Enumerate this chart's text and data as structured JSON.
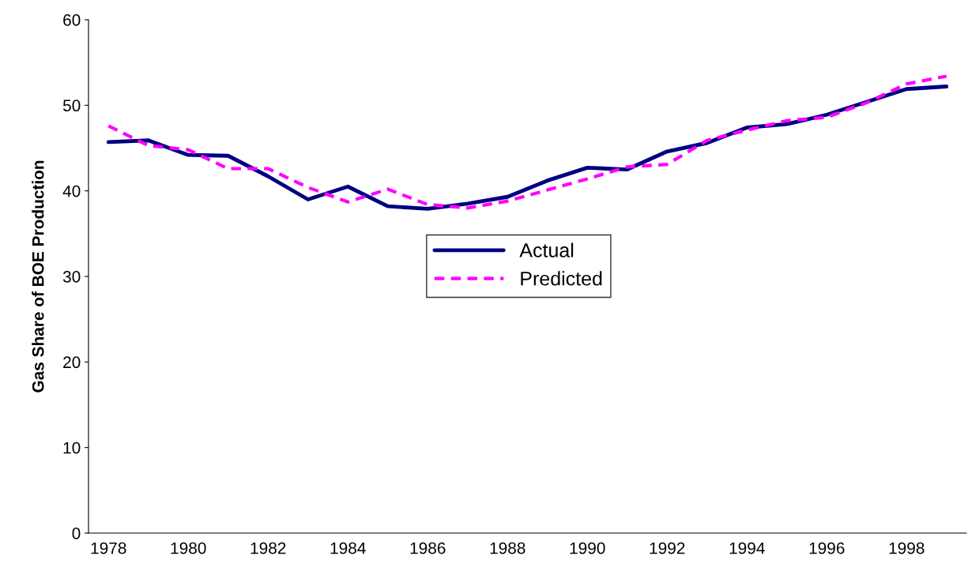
{
  "chart_data": {
    "type": "line",
    "ylabel": "Gas Share of BOE Production",
    "categories": [
      "1978",
      null,
      "1980",
      null,
      "1982",
      null,
      "1984",
      null,
      "1986",
      null,
      "1988",
      null,
      "1990",
      null,
      "1992",
      null,
      "1994",
      null,
      "1996",
      null,
      "1998",
      null
    ],
    "series": [
      {
        "name": "Actual",
        "color": "#000080",
        "line_style": "solid",
        "values": [
          45.7,
          45.9,
          44.2,
          44.1,
          41.7,
          39.0,
          40.5,
          38.2,
          37.9,
          38.5,
          39.3,
          41.2,
          42.7,
          42.5,
          44.6,
          45.6,
          47.4,
          47.8,
          48.9,
          50.4,
          51.9,
          52.2
        ]
      },
      {
        "name": "Predicted",
        "color": "#ff00ff",
        "line_style": "dashed",
        "values": [
          47.6,
          45.3,
          44.8,
          42.6,
          42.6,
          40.4,
          38.7,
          40.2,
          38.4,
          38.0,
          38.8,
          40.1,
          41.4,
          42.8,
          43.1,
          45.9,
          47.1,
          48.2,
          48.6,
          50.3,
          52.5,
          53.4
        ]
      }
    ],
    "ylim": [
      0,
      60
    ],
    "yticks": [
      0,
      10,
      20,
      30,
      40,
      50,
      60
    ],
    "grid": false,
    "legend": "center",
    "marker": "none"
  }
}
